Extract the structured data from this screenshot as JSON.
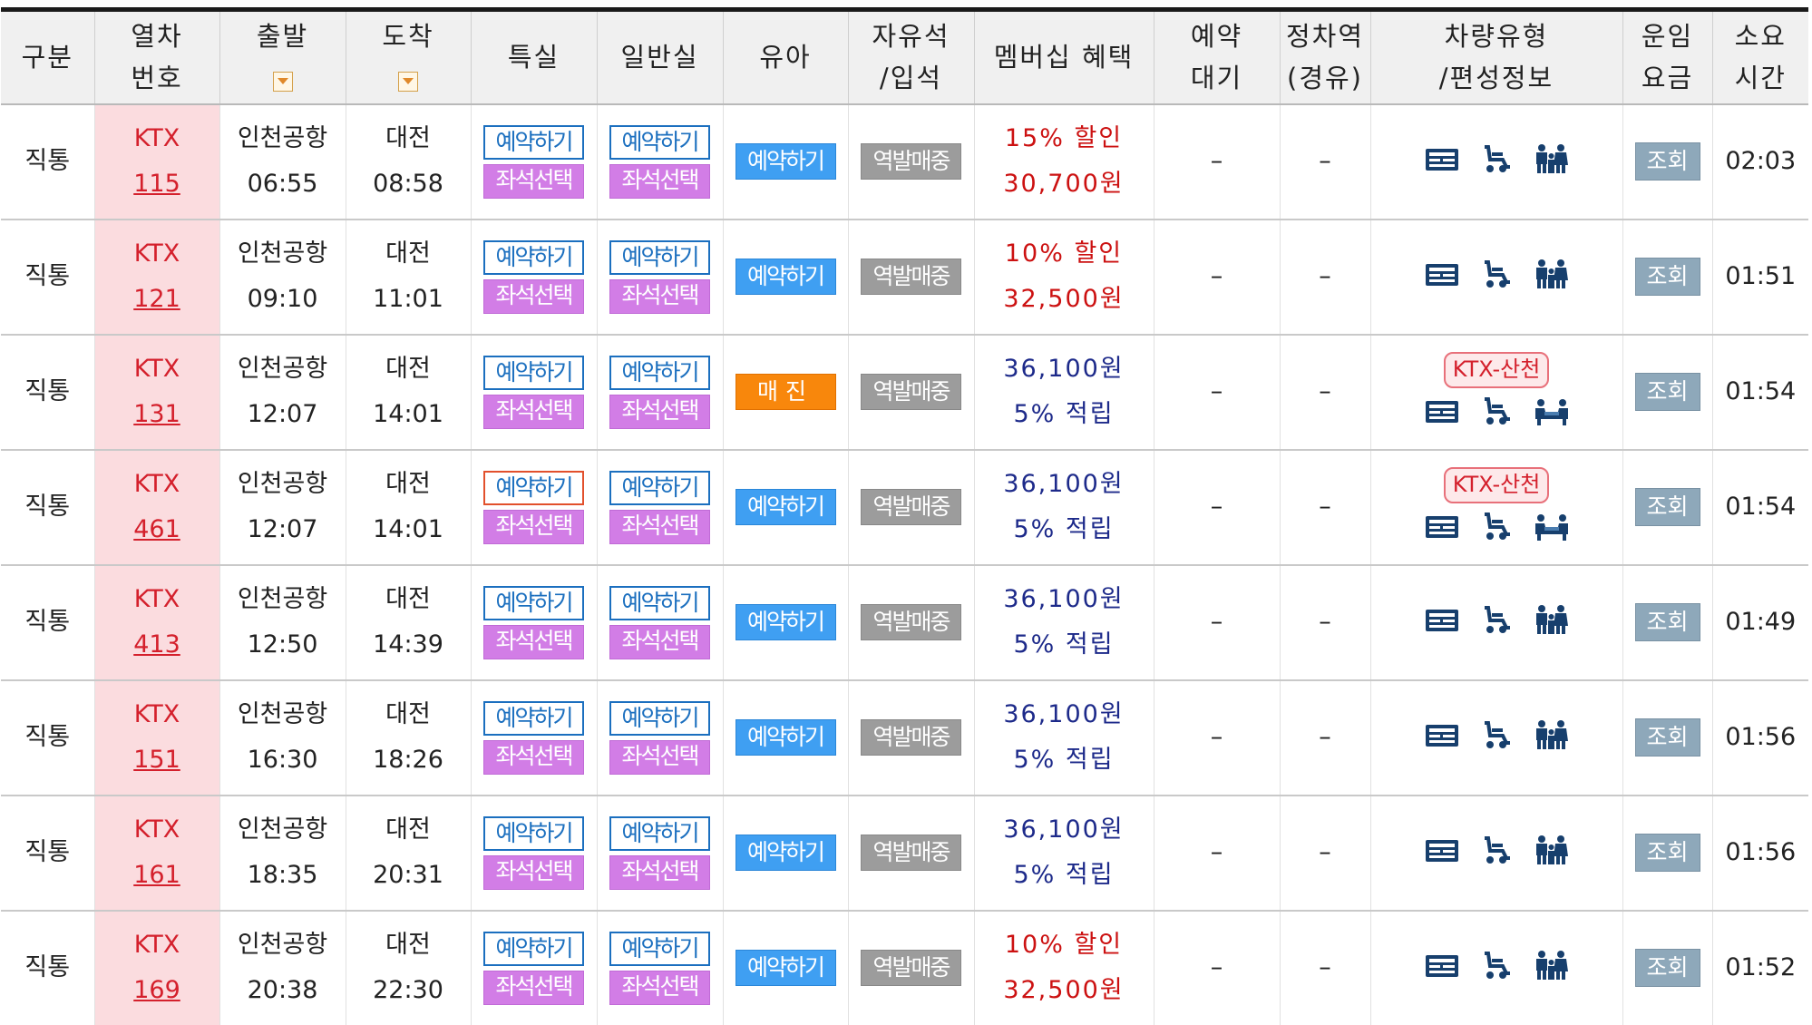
{
  "header": {
    "col_category": "구분",
    "col_train_no": [
      "열차",
      "번호"
    ],
    "col_depart": "출발",
    "col_arrive": "도착",
    "col_special": "특실",
    "col_general": "일반실",
    "col_infant": "유아",
    "col_free": [
      "자유석",
      "/입석"
    ],
    "col_membership": "멤버십 혜택",
    "col_waitlist": [
      "예약",
      "대기"
    ],
    "col_via": [
      "정차역",
      "(경유)"
    ],
    "col_vehicle": [
      "차량유형",
      "/편성정보"
    ],
    "col_fare": [
      "운임",
      "요금"
    ],
    "col_duration": [
      "소요",
      "시간"
    ]
  },
  "labels": {
    "reserve": "예약하기",
    "seat_select": "좌석선택",
    "sold_out": "매진",
    "station_sale": "역발매중",
    "fare_query": "조회",
    "dash": "–",
    "ktx_sancheon": "KTX-산천"
  },
  "icons": {
    "sort": "sort-down-icon",
    "seat_map": "seat-map-icon",
    "wheelchair": "wheelchair-icon",
    "family": "family-seat-icon",
    "meeting": "meeting-room-icon"
  },
  "colors": {
    "train_no_bg": "#fbdcdf",
    "train_no_text": "#d4202c",
    "reserve_border": "#1b6fbf",
    "seat_select_bg": "#d27de6",
    "infant_bg": "#3f9ff2",
    "sold_out_bg": "#f8870c",
    "station_bg": "#9c9c9c",
    "fare_bg": "#8ea8ba",
    "benefit_discount": "#cc1111",
    "benefit_points": "#1d2a8a"
  },
  "rows": [
    {
      "category": "직통",
      "train_type": "KTX",
      "train_no": "115",
      "from": "인천공항",
      "dep": "06:55",
      "to": "대전",
      "arr": "08:58",
      "special_highlight": false,
      "infant": "reserve",
      "benefit": [
        "15% 할인",
        "30,700원"
      ],
      "benefit_kind": "discount",
      "waitlist": "–",
      "via": "–",
      "sancheon": false,
      "duration": "02:03"
    },
    {
      "category": "직통",
      "train_type": "KTX",
      "train_no": "121",
      "from": "인천공항",
      "dep": "09:10",
      "to": "대전",
      "arr": "11:01",
      "special_highlight": false,
      "infant": "reserve",
      "benefit": [
        "10% 할인",
        "32,500원"
      ],
      "benefit_kind": "discount",
      "waitlist": "–",
      "via": "–",
      "sancheon": false,
      "duration": "01:51"
    },
    {
      "category": "직통",
      "train_type": "KTX",
      "train_no": "131",
      "from": "인천공항",
      "dep": "12:07",
      "to": "대전",
      "arr": "14:01",
      "special_highlight": false,
      "infant": "sold_out",
      "benefit": [
        "36,100원",
        "5% 적립"
      ],
      "benefit_kind": "points",
      "waitlist": "–",
      "via": "–",
      "sancheon": true,
      "duration": "01:54"
    },
    {
      "category": "직통",
      "train_type": "KTX",
      "train_no": "461",
      "from": "인천공항",
      "dep": "12:07",
      "to": "대전",
      "arr": "14:01",
      "special_highlight": true,
      "infant": "reserve",
      "benefit": [
        "36,100원",
        "5% 적립"
      ],
      "benefit_kind": "points",
      "waitlist": "–",
      "via": "–",
      "sancheon": true,
      "duration": "01:54"
    },
    {
      "category": "직통",
      "train_type": "KTX",
      "train_no": "413",
      "from": "인천공항",
      "dep": "12:50",
      "to": "대전",
      "arr": "14:39",
      "special_highlight": false,
      "infant": "reserve",
      "benefit": [
        "36,100원",
        "5% 적립"
      ],
      "benefit_kind": "points",
      "waitlist": "–",
      "via": "–",
      "sancheon": false,
      "duration": "01:49"
    },
    {
      "category": "직통",
      "train_type": "KTX",
      "train_no": "151",
      "from": "인천공항",
      "dep": "16:30",
      "to": "대전",
      "arr": "18:26",
      "special_highlight": false,
      "infant": "reserve",
      "benefit": [
        "36,100원",
        "5% 적립"
      ],
      "benefit_kind": "points",
      "waitlist": "–",
      "via": "–",
      "sancheon": false,
      "duration": "01:56"
    },
    {
      "category": "직통",
      "train_type": "KTX",
      "train_no": "161",
      "from": "인천공항",
      "dep": "18:35",
      "to": "대전",
      "arr": "20:31",
      "special_highlight": false,
      "infant": "reserve",
      "benefit": [
        "36,100원",
        "5% 적립"
      ],
      "benefit_kind": "points",
      "waitlist": "–",
      "via": "–",
      "sancheon": false,
      "duration": "01:56"
    },
    {
      "category": "직통",
      "train_type": "KTX",
      "train_no": "169",
      "from": "인천공항",
      "dep": "20:38",
      "to": "대전",
      "arr": "22:30",
      "special_highlight": false,
      "infant": "reserve",
      "benefit": [
        "10% 할인",
        "32,500원"
      ],
      "benefit_kind": "discount",
      "waitlist": "–",
      "via": "–",
      "sancheon": false,
      "duration": "01:52"
    }
  ]
}
